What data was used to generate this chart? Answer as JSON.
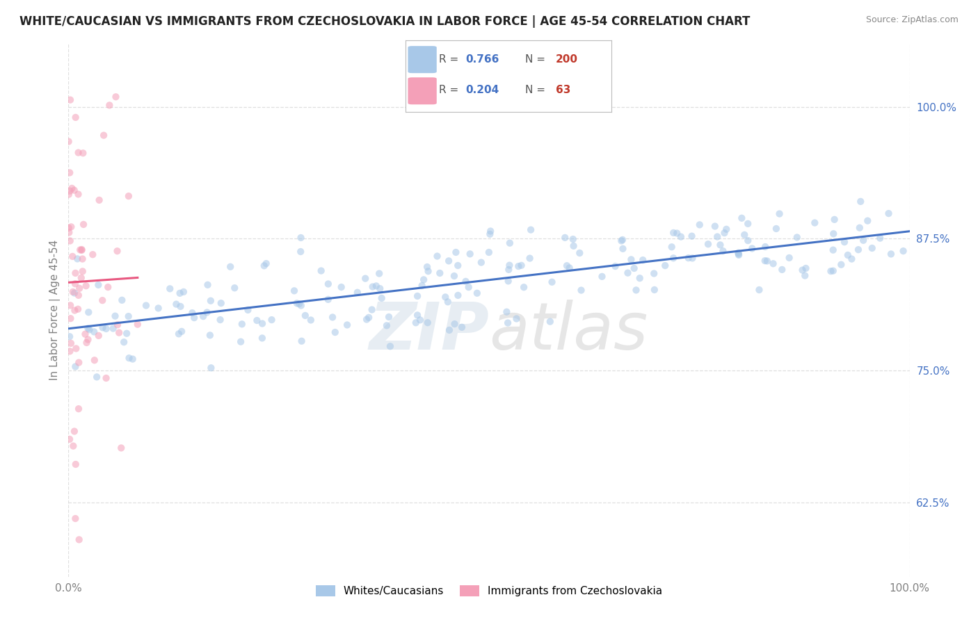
{
  "title": "WHITE/CAUCASIAN VS IMMIGRANTS FROM CZECHOSLOVAKIA IN LABOR FORCE | AGE 45-54 CORRELATION CHART",
  "source": "Source: ZipAtlas.com",
  "ylabel": "In Labor Force | Age 45-54",
  "watermark_zip": "ZIP",
  "watermark_atlas": "atlas",
  "blue_R": 0.766,
  "blue_N": 200,
  "pink_R": 0.204,
  "pink_N": 63,
  "blue_color": "#a8c8e8",
  "pink_color": "#f4a0b8",
  "blue_line_color": "#4472c4",
  "pink_line_color": "#e85880",
  "legend_R_color": "#4472c4",
  "legend_N_color": "#c0392b",
  "xlim": [
    0.0,
    1.0
  ],
  "ylim": [
    0.555,
    1.06
  ],
  "yticks": [
    0.625,
    0.75,
    0.875,
    1.0
  ],
  "ytick_labels": [
    "62.5%",
    "75.0%",
    "87.5%",
    "100.0%"
  ],
  "xtick_labels": [
    "0.0%",
    "100.0%"
  ],
  "xticks": [
    0.0,
    1.0
  ],
  "background_color": "#ffffff",
  "grid_color": "#d8d8d8",
  "title_fontsize": 12,
  "axis_label_fontsize": 11,
  "tick_fontsize": 11,
  "legend_label_blue": "Whites/Caucasians",
  "legend_label_pink": "Immigrants from Czechoslovakia",
  "blue_scatter_alpha": 0.55,
  "pink_scatter_alpha": 0.55,
  "scatter_size": 55
}
